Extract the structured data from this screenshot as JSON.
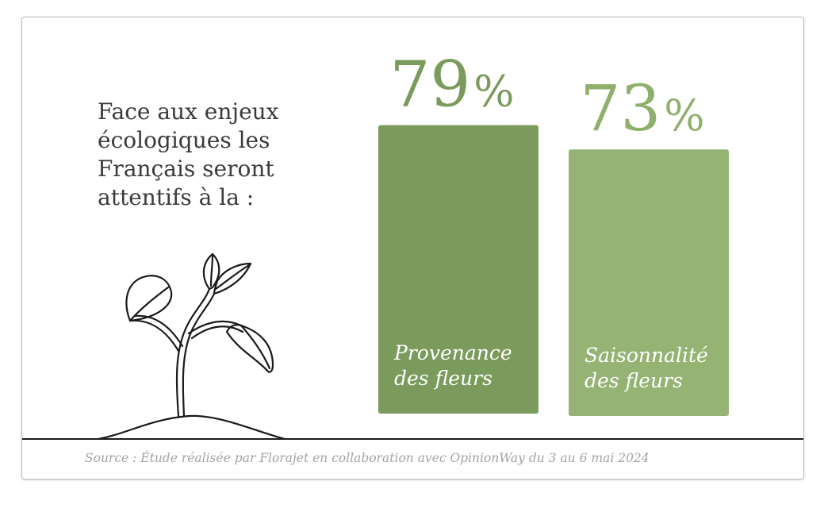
{
  "headline": [
    "Face aux enjeux",
    "écologiques les",
    "Français seront",
    "attentifs à la :"
  ],
  "source": "Source : Étude réalisée par Florajet en collaboration avec OpinionWay du 3 au 6 mai 2024",
  "colors": {
    "bar_dark": "#7a9b5b",
    "bar_light": "#95b373",
    "value_dark": "#7a9b5b",
    "value_light": "#8fb06c",
    "text": "#3a3a3a",
    "source": "#a3a3a3"
  },
  "icon": "sprouting-plant-icon",
  "chart_data": {
    "type": "bar",
    "unit": "%",
    "categories": [
      [
        "Provenance",
        "des fleurs"
      ],
      [
        "Saisonnalité",
        "des fleurs"
      ]
    ],
    "values": [
      79,
      73
    ],
    "value_labels": [
      "79",
      "73"
    ]
  }
}
